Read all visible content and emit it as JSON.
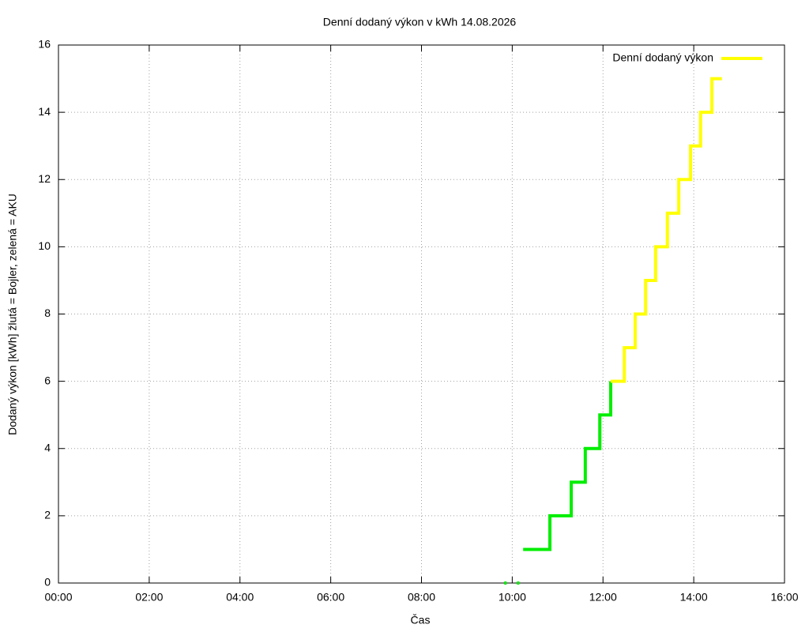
{
  "chart_data": {
    "type": "line",
    "title": "Denní dodaný výkon v kWh 14.08.2026",
    "x_label": "Čas",
    "y_label": "Dodaný výkon [kWh]  žlutá = Bojler, zelená = AKU",
    "xlim": [
      0,
      16
    ],
    "xticks": [
      {
        "value": 0,
        "label": "00:00"
      },
      {
        "value": 2,
        "label": "02:00"
      },
      {
        "value": 4,
        "label": "04:00"
      },
      {
        "value": 6,
        "label": "06:00"
      },
      {
        "value": 8,
        "label": "08:00"
      },
      {
        "value": 10,
        "label": "10:00"
      },
      {
        "value": 12,
        "label": "12:00"
      },
      {
        "value": 14,
        "label": "14:00"
      },
      {
        "value": 16,
        "label": "16:00"
      }
    ],
    "ylim": [
      0,
      16
    ],
    "yticks": [
      0,
      2,
      4,
      6,
      8,
      10,
      12,
      14,
      16
    ],
    "grid": true,
    "legend": "top-right",
    "series": [
      {
        "color": "#00ee00",
        "x": [
          9.85,
          null,
          10.13,
          null,
          10.24,
          10.83,
          10.83,
          11.3,
          11.3,
          11.61,
          11.61,
          11.93,
          11.93,
          12.17,
          12.17
        ],
        "values": [
          0,
          null,
          0,
          null,
          1,
          1,
          2,
          2,
          3,
          3,
          4,
          4,
          5,
          5,
          6
        ]
      },
      {
        "name": "Denní dodaný výkon",
        "color": "#ffff00",
        "x": [
          12.17,
          12.47,
          12.47,
          12.71,
          12.71,
          12.94,
          12.94,
          13.16,
          13.16,
          13.42,
          13.42,
          13.67,
          13.67,
          13.93,
          13.93,
          14.15,
          14.15,
          14.4,
          14.4,
          14.62
        ],
        "values": [
          6,
          6,
          7,
          7,
          8,
          8,
          9,
          9,
          10,
          10,
          11,
          11,
          12,
          12,
          13,
          13,
          14,
          14,
          15,
          15
        ]
      }
    ]
  }
}
